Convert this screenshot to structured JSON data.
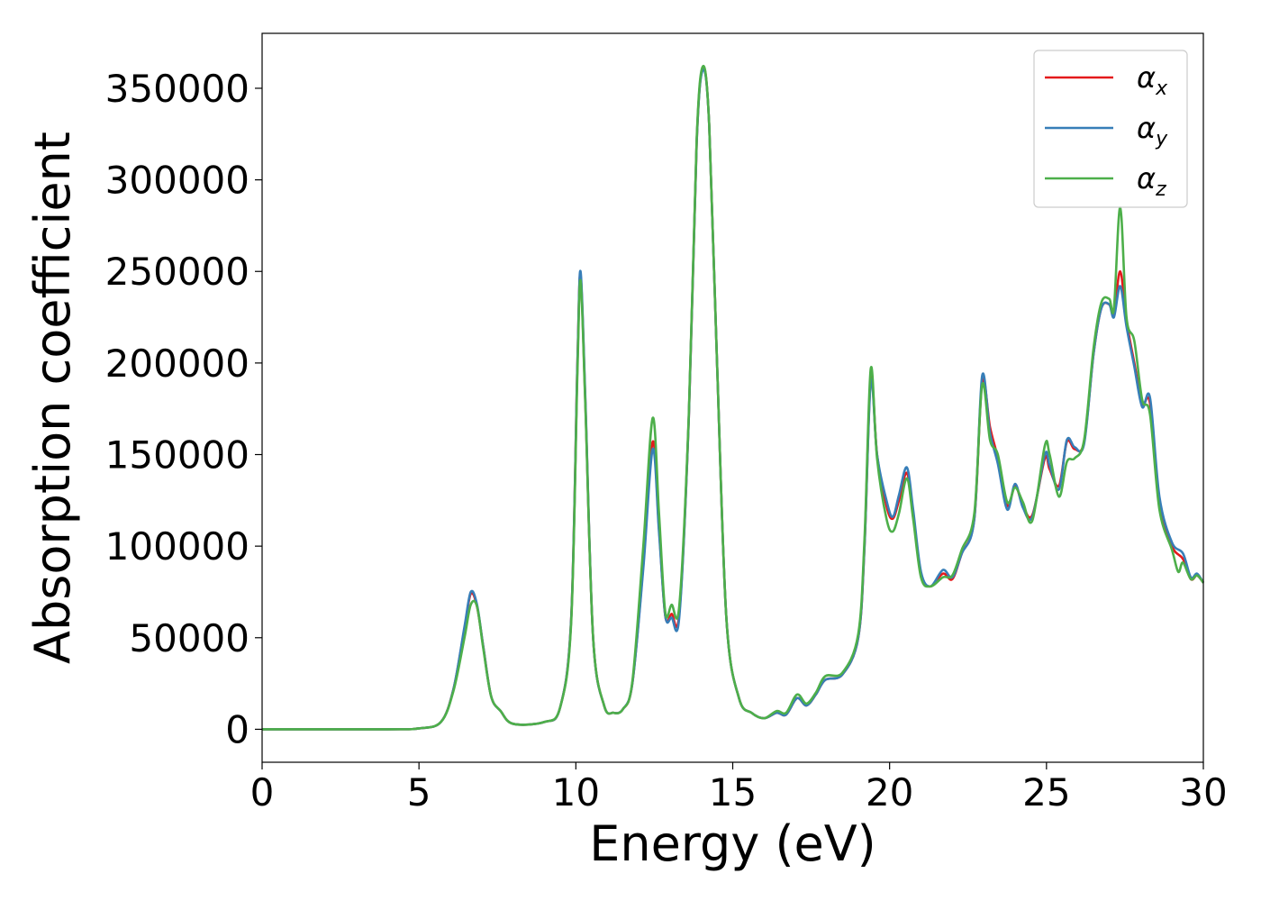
{
  "chart_data": {
    "type": "line",
    "xlabel": "Energy (eV)",
    "ylabel": "Absorption coefficient",
    "xlim": [
      0,
      30
    ],
    "ylim": [
      -18000,
      380000
    ],
    "xticks": [
      0,
      5,
      10,
      15,
      20,
      25,
      30
    ],
    "xtick_labels": [
      "0",
      "5",
      "10",
      "15",
      "20",
      "25",
      "30"
    ],
    "yticks": [
      0,
      50000,
      100000,
      150000,
      200000,
      250000,
      300000,
      350000
    ],
    "ytick_labels": [
      "0",
      "50000",
      "100000",
      "150000",
      "200000",
      "250000",
      "300000",
      "350000"
    ],
    "grid": false,
    "legend_position": "top-right",
    "series": [
      {
        "name": "αx",
        "symbol": "α",
        "subscript": "x",
        "color": "#e41a1c",
        "points": [
          [
            0,
            0
          ],
          [
            4,
            0
          ],
          [
            5,
            500
          ],
          [
            5.7,
            4000
          ],
          [
            6.1,
            22000
          ],
          [
            6.45,
            55000
          ],
          [
            6.65,
            74000
          ],
          [
            6.85,
            67000
          ],
          [
            7.05,
            45000
          ],
          [
            7.3,
            18000
          ],
          [
            7.6,
            10000
          ],
          [
            8,
            3000
          ],
          [
            9,
            4000
          ],
          [
            9.5,
            12000
          ],
          [
            9.85,
            60000
          ],
          [
            10.05,
            200000
          ],
          [
            10.15,
            248000
          ],
          [
            10.3,
            180000
          ],
          [
            10.55,
            50000
          ],
          [
            10.9,
            13000
          ],
          [
            11.2,
            9000
          ],
          [
            11.5,
            11000
          ],
          [
            11.8,
            25000
          ],
          [
            12.15,
            90000
          ],
          [
            12.45,
            157000
          ],
          [
            12.65,
            110000
          ],
          [
            12.85,
            62000
          ],
          [
            13.05,
            63000
          ],
          [
            13.3,
            64000
          ],
          [
            13.6,
            170000
          ],
          [
            13.85,
            320000
          ],
          [
            14.05,
            361000
          ],
          [
            14.25,
            330000
          ],
          [
            14.5,
            200000
          ],
          [
            14.8,
            60000
          ],
          [
            15.2,
            17000
          ],
          [
            15.6,
            9000
          ],
          [
            16,
            6000
          ],
          [
            16.4,
            9000
          ],
          [
            16.7,
            8000
          ],
          [
            17.05,
            17000
          ],
          [
            17.35,
            13000
          ],
          [
            17.65,
            19000
          ],
          [
            17.95,
            27000
          ],
          [
            18.5,
            30000
          ],
          [
            19,
            50000
          ],
          [
            19.2,
            100000
          ],
          [
            19.4,
            192000
          ],
          [
            19.6,
            150000
          ],
          [
            19.9,
            122000
          ],
          [
            20.1,
            115000
          ],
          [
            20.3,
            125000
          ],
          [
            20.55,
            140000
          ],
          [
            20.75,
            118000
          ],
          [
            21,
            85000
          ],
          [
            21.3,
            78000
          ],
          [
            21.7,
            85000
          ],
          [
            22,
            82000
          ],
          [
            22.3,
            96000
          ],
          [
            22.7,
            115000
          ],
          [
            22.95,
            190000
          ],
          [
            23.2,
            165000
          ],
          [
            23.45,
            148000
          ],
          [
            23.75,
            122000
          ],
          [
            24,
            133000
          ],
          [
            24.25,
            122000
          ],
          [
            24.55,
            117000
          ],
          [
            24.95,
            148000
          ],
          [
            25.1,
            142000
          ],
          [
            25.4,
            133000
          ],
          [
            25.65,
            157000
          ],
          [
            25.9,
            153000
          ],
          [
            26.2,
            157000
          ],
          [
            26.5,
            205000
          ],
          [
            26.75,
            230000
          ],
          [
            27,
            232000
          ],
          [
            27.15,
            227000
          ],
          [
            27.35,
            250000
          ],
          [
            27.55,
            223000
          ],
          [
            27.8,
            200000
          ],
          [
            28.05,
            178000
          ],
          [
            28.3,
            178000
          ],
          [
            28.6,
            125000
          ],
          [
            29,
            100000
          ],
          [
            29.35,
            93000
          ],
          [
            29.6,
            82000
          ],
          [
            29.8,
            84000
          ],
          [
            30,
            80000
          ]
        ]
      },
      {
        "name": "αy",
        "symbol": "α",
        "subscript": "y",
        "color": "#377eb8",
        "points": [
          [
            0,
            0
          ],
          [
            4,
            0
          ],
          [
            5,
            500
          ],
          [
            5.7,
            4000
          ],
          [
            6.1,
            22000
          ],
          [
            6.45,
            56000
          ],
          [
            6.65,
            75000
          ],
          [
            6.85,
            68000
          ],
          [
            7.05,
            45000
          ],
          [
            7.3,
            18000
          ],
          [
            7.6,
            10000
          ],
          [
            8,
            3000
          ],
          [
            9,
            4000
          ],
          [
            9.5,
            12000
          ],
          [
            9.85,
            60000
          ],
          [
            10.05,
            200000
          ],
          [
            10.15,
            250000
          ],
          [
            10.3,
            182000
          ],
          [
            10.55,
            50000
          ],
          [
            10.9,
            13000
          ],
          [
            11.2,
            9000
          ],
          [
            11.5,
            11000
          ],
          [
            11.8,
            25000
          ],
          [
            12.15,
            88000
          ],
          [
            12.45,
            153000
          ],
          [
            12.65,
            108000
          ],
          [
            12.85,
            62000
          ],
          [
            13.05,
            61000
          ],
          [
            13.3,
            62000
          ],
          [
            13.6,
            170000
          ],
          [
            13.85,
            320000
          ],
          [
            14.05,
            360000
          ],
          [
            14.25,
            330000
          ],
          [
            14.5,
            200000
          ],
          [
            14.8,
            60000
          ],
          [
            15.2,
            17000
          ],
          [
            15.6,
            9000
          ],
          [
            16,
            6000
          ],
          [
            16.4,
            9000
          ],
          [
            16.7,
            8000
          ],
          [
            17.05,
            17000
          ],
          [
            17.35,
            13000
          ],
          [
            17.65,
            19000
          ],
          [
            17.95,
            27000
          ],
          [
            18.5,
            30000
          ],
          [
            19,
            50000
          ],
          [
            19.2,
            100000
          ],
          [
            19.4,
            190000
          ],
          [
            19.6,
            150000
          ],
          [
            19.9,
            125000
          ],
          [
            20.1,
            116000
          ],
          [
            20.3,
            128000
          ],
          [
            20.55,
            143000
          ],
          [
            20.75,
            120000
          ],
          [
            21,
            86000
          ],
          [
            21.3,
            78000
          ],
          [
            21.7,
            87000
          ],
          [
            22,
            83000
          ],
          [
            22.3,
            96000
          ],
          [
            22.7,
            115000
          ],
          [
            22.95,
            193000
          ],
          [
            23.2,
            162000
          ],
          [
            23.45,
            145000
          ],
          [
            23.75,
            120000
          ],
          [
            24,
            134000
          ],
          [
            24.25,
            121000
          ],
          [
            24.55,
            116000
          ],
          [
            24.95,
            150000
          ],
          [
            25.1,
            144000
          ],
          [
            25.4,
            131000
          ],
          [
            25.65,
            158000
          ],
          [
            25.9,
            154000
          ],
          [
            26.2,
            156000
          ],
          [
            26.5,
            205000
          ],
          [
            26.75,
            230000
          ],
          [
            27,
            232000
          ],
          [
            27.15,
            225000
          ],
          [
            27.35,
            242000
          ],
          [
            27.55,
            220000
          ],
          [
            27.8,
            198000
          ],
          [
            28.05,
            176000
          ],
          [
            28.3,
            181000
          ],
          [
            28.6,
            127000
          ],
          [
            29,
            102000
          ],
          [
            29.35,
            96000
          ],
          [
            29.6,
            83000
          ],
          [
            29.8,
            85000
          ],
          [
            30,
            80000
          ]
        ]
      },
      {
        "name": "αz",
        "symbol": "α",
        "subscript": "z",
        "color": "#4daf4a",
        "points": [
          [
            0,
            0
          ],
          [
            4,
            0
          ],
          [
            5,
            500
          ],
          [
            5.7,
            4000
          ],
          [
            6.1,
            21000
          ],
          [
            6.45,
            50000
          ],
          [
            6.65,
            68000
          ],
          [
            6.85,
            67000
          ],
          [
            7.05,
            44000
          ],
          [
            7.3,
            18000
          ],
          [
            7.6,
            10000
          ],
          [
            8,
            3000
          ],
          [
            9,
            4000
          ],
          [
            9.5,
            12000
          ],
          [
            9.85,
            58000
          ],
          [
            10.05,
            195000
          ],
          [
            10.15,
            245000
          ],
          [
            10.3,
            178000
          ],
          [
            10.55,
            50000
          ],
          [
            10.9,
            13000
          ],
          [
            11.2,
            9000
          ],
          [
            11.5,
            11000
          ],
          [
            11.8,
            26000
          ],
          [
            12.15,
            100000
          ],
          [
            12.45,
            170000
          ],
          [
            12.65,
            118000
          ],
          [
            12.85,
            64000
          ],
          [
            13.05,
            68000
          ],
          [
            13.3,
            68000
          ],
          [
            13.6,
            172000
          ],
          [
            13.85,
            322000
          ],
          [
            14.05,
            362000
          ],
          [
            14.25,
            330000
          ],
          [
            14.5,
            200000
          ],
          [
            14.8,
            60000
          ],
          [
            15.2,
            17000
          ],
          [
            15.6,
            9000
          ],
          [
            16,
            6000
          ],
          [
            16.4,
            10000
          ],
          [
            16.7,
            9000
          ],
          [
            17.05,
            19000
          ],
          [
            17.35,
            14000
          ],
          [
            17.65,
            20000
          ],
          [
            17.95,
            29000
          ],
          [
            18.5,
            31000
          ],
          [
            19,
            52000
          ],
          [
            19.2,
            104000
          ],
          [
            19.4,
            197000
          ],
          [
            19.6,
            148000
          ],
          [
            19.9,
            115000
          ],
          [
            20.1,
            108000
          ],
          [
            20.3,
            118000
          ],
          [
            20.55,
            137000
          ],
          [
            20.75,
            115000
          ],
          [
            21,
            83000
          ],
          [
            21.3,
            78000
          ],
          [
            21.7,
            83000
          ],
          [
            22,
            84000
          ],
          [
            22.3,
            98000
          ],
          [
            22.7,
            118000
          ],
          [
            22.95,
            188000
          ],
          [
            23.2,
            158000
          ],
          [
            23.45,
            150000
          ],
          [
            23.75,
            124000
          ],
          [
            24,
            132000
          ],
          [
            24.25,
            124000
          ],
          [
            24.55,
            114000
          ],
          [
            24.95,
            155000
          ],
          [
            25.1,
            150000
          ],
          [
            25.4,
            127000
          ],
          [
            25.65,
            146000
          ],
          [
            25.9,
            148000
          ],
          [
            26.2,
            158000
          ],
          [
            26.5,
            208000
          ],
          [
            26.75,
            233000
          ],
          [
            27,
            235000
          ],
          [
            27.15,
            230000
          ],
          [
            27.35,
            285000
          ],
          [
            27.55,
            225000
          ],
          [
            27.8,
            212000
          ],
          [
            28.05,
            180000
          ],
          [
            28.3,
            172000
          ],
          [
            28.6,
            120000
          ],
          [
            29,
            98000
          ],
          [
            29.2,
            86000
          ],
          [
            29.35,
            91000
          ],
          [
            29.6,
            82000
          ],
          [
            29.8,
            84000
          ],
          [
            30,
            80000
          ]
        ]
      }
    ]
  }
}
